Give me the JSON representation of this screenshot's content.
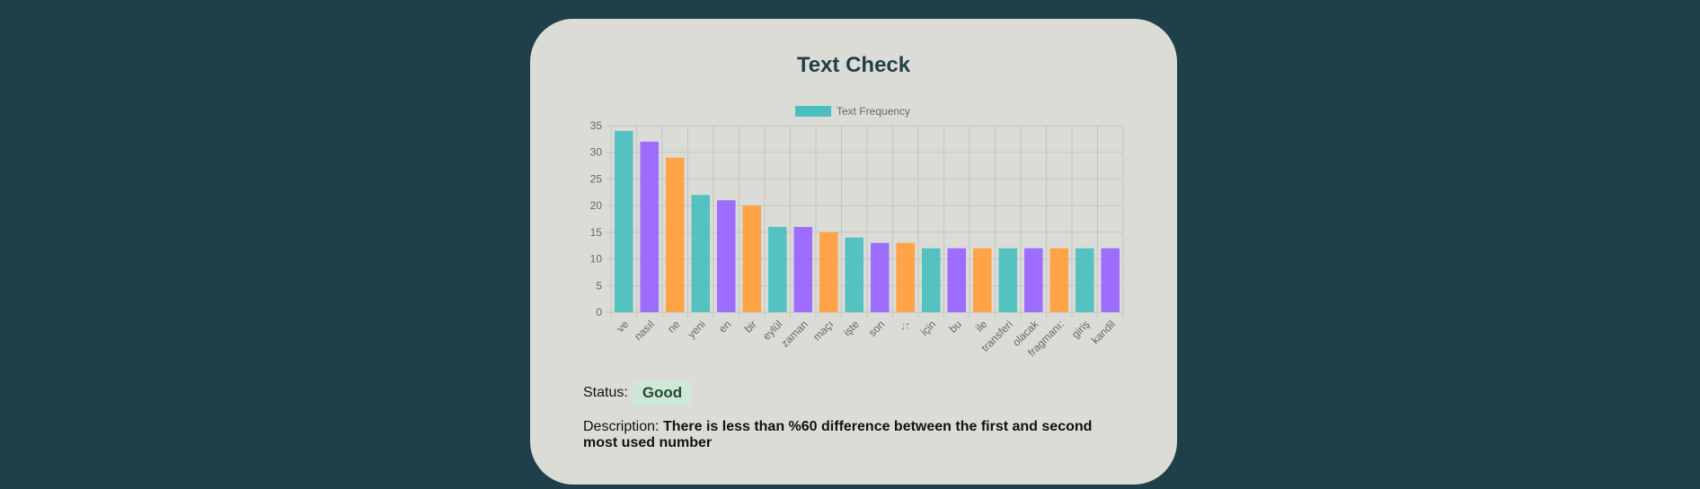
{
  "card": {
    "title": "Text Check",
    "status_label": "Status:",
    "status_value": "Good",
    "description_label": "Description:",
    "description_text": "There is less than %60 difference between the first and second most used number"
  },
  "colors": {
    "page_bg": "#1f3f4a",
    "card_bg": "#dcdcd7",
    "teal": "#4bc0c0",
    "purple": "#9966ff",
    "orange": "#ff9f40",
    "status_good_bg": "#cfe7d6"
  },
  "chart_data": {
    "type": "bar",
    "categories": [
      "ve",
      "nasıl",
      "ne",
      "yeni",
      "en",
      "bir",
      "eylül",
      "zaman",
      "maçı",
      "işte",
      "son",
      "-:-",
      "için",
      "bu",
      "ile",
      "transferi",
      "olacak",
      "fragmanı:",
      "giriş",
      "kandil"
    ],
    "series": [
      {
        "name": "Text Frequency",
        "values": [
          34,
          32,
          29,
          22,
          21,
          20,
          16,
          16,
          15,
          14,
          13,
          13,
          12,
          12,
          12,
          12,
          12,
          12,
          12,
          12
        ]
      }
    ],
    "bar_colors": [
      "#4bc0c0",
      "#9966ff",
      "#ff9f40"
    ],
    "ylim": [
      0,
      35
    ],
    "yticks": [
      0,
      5,
      10,
      15,
      20,
      25,
      30,
      35
    ],
    "grid": true,
    "legend": "top-center"
  }
}
